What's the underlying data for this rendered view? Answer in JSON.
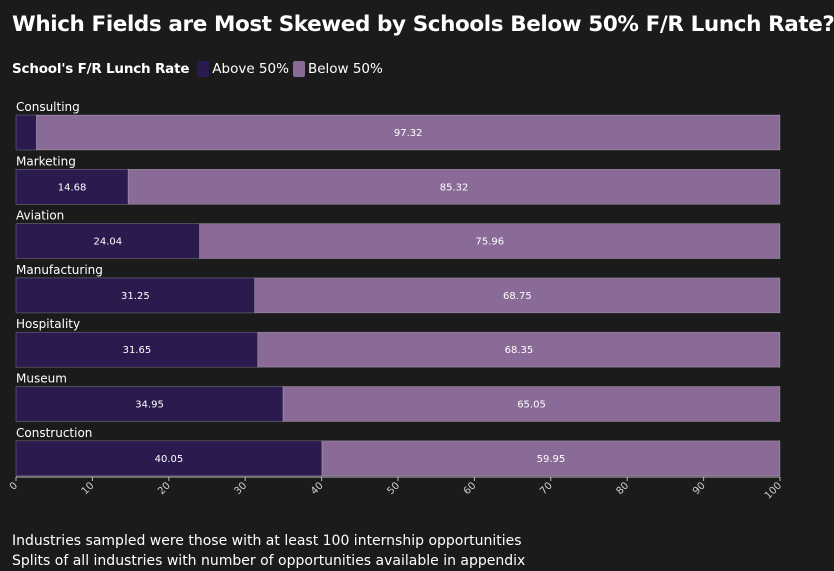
{
  "page": {
    "title": "Which Fields are Most Skewed by Schools Below 50% F/R Lunch Rate?",
    "footer_lines": [
      "Industries sampled were those with at least 100 internship opportunities",
      "Splits of all industries with number of opportunities available in appendix"
    ]
  },
  "legend": {
    "title": "School's F/R Lunch Rate",
    "items": [
      {
        "label": "Above 50%",
        "color": "#2a1a4e"
      },
      {
        "label": "Below 50%",
        "color": "#8a6b97"
      }
    ]
  },
  "chart_data": {
    "type": "bar",
    "orientation": "horizontal",
    "stacked": true,
    "categories": [
      "Consulting",
      "Marketing",
      "Aviation",
      "Manufacturing",
      "Hospitality",
      "Museum",
      "Construction"
    ],
    "series": [
      {
        "name": "Above 50%",
        "color": "#2a1a4e",
        "values": [
          2.68,
          14.68,
          24.04,
          31.25,
          31.65,
          34.95,
          40.05
        ],
        "labels": [
          "",
          "14.68",
          "24.04",
          "31.25",
          "31.65",
          "34.95",
          "40.05"
        ]
      },
      {
        "name": "Below 50%",
        "color": "#8a6b97",
        "values": [
          97.32,
          85.32,
          75.96,
          68.75,
          68.35,
          65.05,
          59.95
        ],
        "labels": [
          "97.32",
          "85.32",
          "75.96",
          "68.75",
          "68.35",
          "65.05",
          "59.95"
        ]
      }
    ],
    "xlim": [
      0,
      100
    ],
    "xticks": [
      0,
      10,
      20,
      30,
      40,
      50,
      60,
      70,
      80,
      90,
      100
    ],
    "grid": false,
    "legend_position": "top-left"
  }
}
